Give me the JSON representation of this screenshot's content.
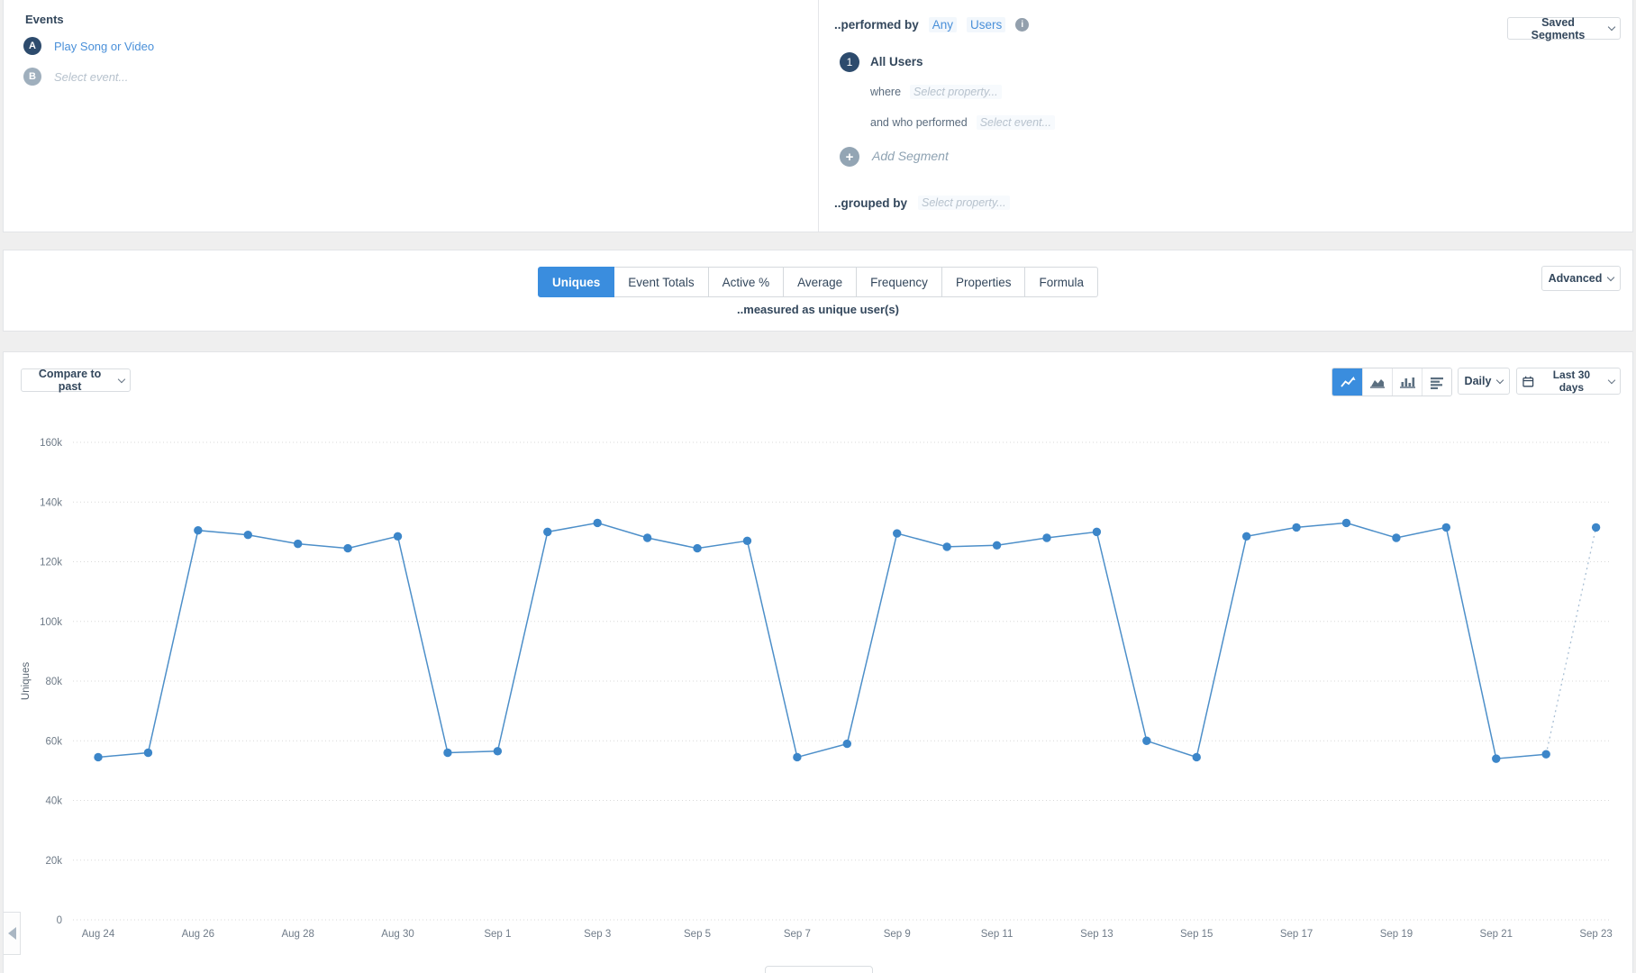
{
  "colors": {
    "accent_blue": "#3a8dde",
    "line_blue": "#4d8fc9",
    "point_blue": "#3c86c9",
    "navy_text": "#33475c",
    "link_blue": "#4a90d9",
    "placeholder_gray": "#b7c2cd"
  },
  "events_panel": {
    "title": "Events",
    "rows": [
      {
        "badge": "A",
        "label": "Play Song or Video"
      },
      {
        "badge": "B",
        "label": "Select event..."
      }
    ]
  },
  "segmentation_panel": {
    "performed_by_label": "..performed by",
    "any_link": "Any",
    "users_link": "Users",
    "info_icon": "i",
    "segment_number": "1",
    "segment_name": "All Users",
    "where_label": "where",
    "where_placeholder": "Select property...",
    "and_who_label": "and who performed",
    "and_who_placeholder": "Select event...",
    "plus_glyph": "+",
    "add_segment_label": "Add Segment",
    "grouped_by_label": "..grouped by",
    "grouped_by_placeholder": "Select property...",
    "saved_segments_button": "Saved Segments"
  },
  "measure_panel": {
    "tabs": [
      {
        "label": "Uniques",
        "active": true
      },
      {
        "label": "Event Totals",
        "active": false
      },
      {
        "label": "Active %",
        "active": false
      },
      {
        "label": "Average",
        "active": false
      },
      {
        "label": "Frequency",
        "active": false
      },
      {
        "label": "Properties",
        "active": false
      },
      {
        "label": "Formula",
        "active": false
      }
    ],
    "caption": "..measured as unique user(s)",
    "advanced_button": "Advanced"
  },
  "chart_toolbar": {
    "compare_button": "Compare to past",
    "chart_type_buttons": [
      "line-chart",
      "area-chart",
      "column-chart",
      "row-chart"
    ],
    "active_chart_type": "line-chart",
    "interval_button": "Daily",
    "range_button": "Last 30 days"
  },
  "chart_data": {
    "type": "line",
    "ylabel": "Uniques",
    "ylim": [
      0,
      160000
    ],
    "yticks": [
      "0",
      "20k",
      "40k",
      "60k",
      "80k",
      "100k",
      "120k",
      "140k",
      "160k"
    ],
    "grid": "dotted-horizontal",
    "xtick_every": 2,
    "last_segment_dotted": true,
    "line_color": "#4d8fc9",
    "point_color": "#3c86c9",
    "x": [
      "Aug 24",
      "Aug 25",
      "Aug 26",
      "Aug 27",
      "Aug 28",
      "Aug 29",
      "Aug 30",
      "Aug 31",
      "Sep 1",
      "Sep 2",
      "Sep 3",
      "Sep 4",
      "Sep 5",
      "Sep 6",
      "Sep 7",
      "Sep 8",
      "Sep 9",
      "Sep 10",
      "Sep 11",
      "Sep 12",
      "Sep 13",
      "Sep 14",
      "Sep 15",
      "Sep 16",
      "Sep 17",
      "Sep 18",
      "Sep 19",
      "Sep 20",
      "Sep 21",
      "Sep 22",
      "Sep 23"
    ],
    "values": [
      54500,
      56000,
      130500,
      129000,
      126000,
      124500,
      128500,
      56000,
      56500,
      130000,
      133000,
      128000,
      124500,
      127000,
      54500,
      59000,
      129500,
      125000,
      125500,
      128000,
      130000,
      60000,
      54500,
      128500,
      131500,
      133000,
      128000,
      131500,
      54000,
      55500,
      131500
    ]
  }
}
